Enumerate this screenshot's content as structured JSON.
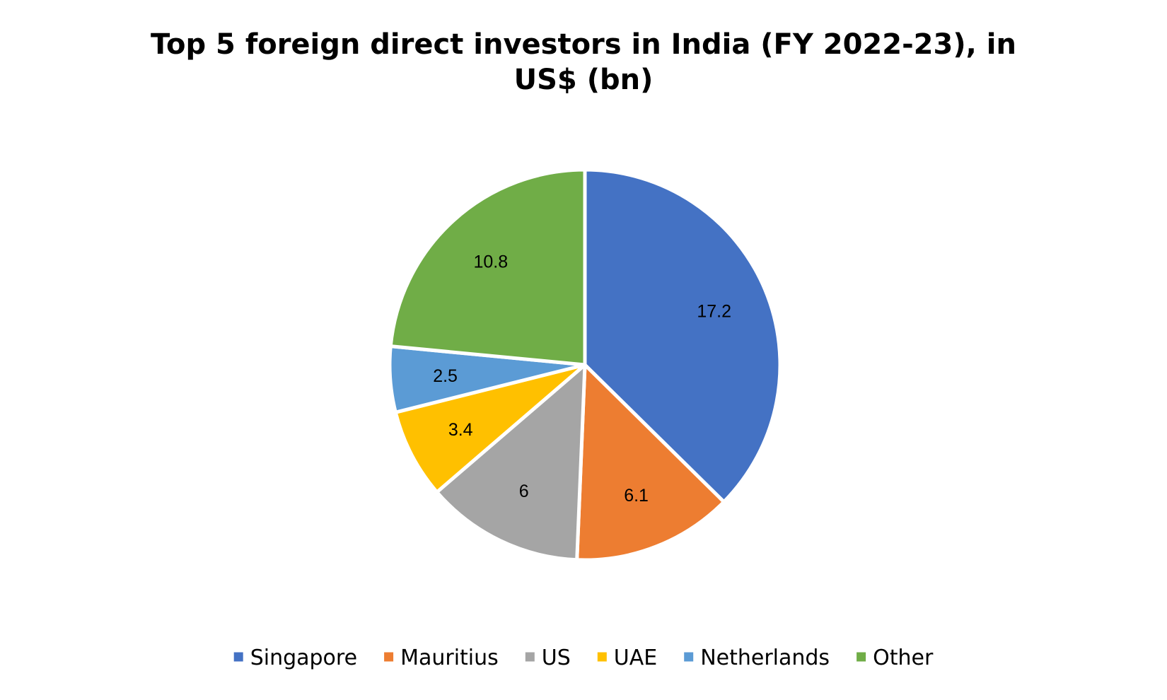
{
  "chart_data": {
    "type": "pie",
    "title_lines": [
      "Top 5 foreign direct investors in India (FY 2022-23), in",
      "US$ (bn)"
    ],
    "categories": [
      "Singapore",
      "Mauritius",
      "US",
      "UAE",
      "Netherlands",
      "Other"
    ],
    "values": [
      17.2,
      6.1,
      6,
      3.4,
      2.5,
      10.8
    ],
    "value_labels": [
      "17.2",
      "6.1",
      "6",
      "3.4",
      "2.5",
      "10.8"
    ],
    "colors": [
      "#4472C4",
      "#ED7D31",
      "#A5A5A5",
      "#FFC000",
      "#5B9BD5",
      "#70AD47"
    ],
    "legend_position": "bottom",
    "start_angle": "12 o'clock",
    "direction": "clockwise"
  }
}
